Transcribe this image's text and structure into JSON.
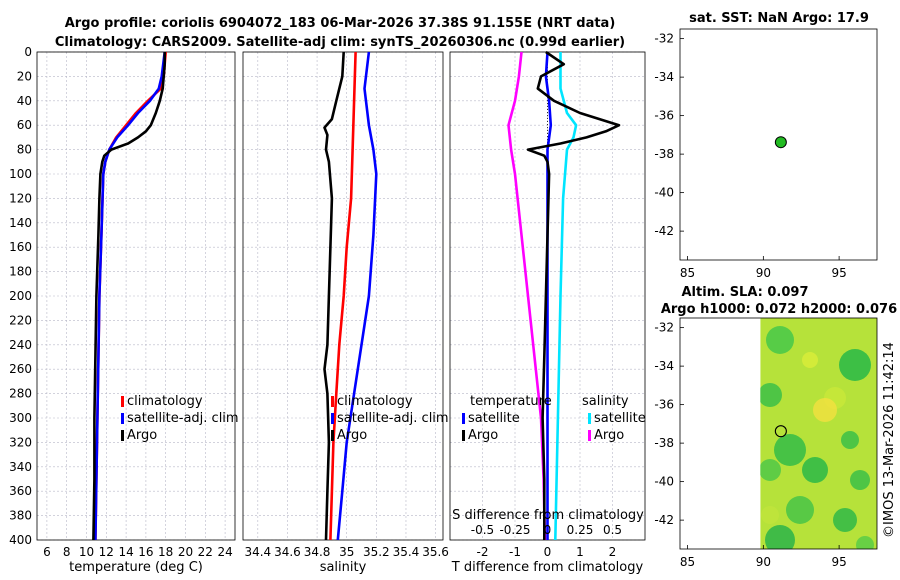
{
  "header": {
    "title_line1": "Argo profile: coriolis 6904072_183 06-Mar-2026 37.38S 91.155E (NRT data)",
    "title_line2": "Climatology: CARS2009. Satellite-adj clim: synTS_20260306.nc (0.99d earlier)"
  },
  "colors": {
    "climatology": "#ff0000",
    "satellite": "#0000ff",
    "argo": "#000000",
    "satellite_salinity": "#00e5ff",
    "argo_salinity_diff": "#ff00ff",
    "marker": "#22bb22"
  },
  "chart_data": [
    {
      "type": "line",
      "xlabel": "temperature (deg C)",
      "ylim": [
        0,
        400
      ],
      "xlim": [
        5,
        25
      ],
      "x_ticks": [
        6,
        8,
        10,
        12,
        14,
        16,
        18,
        20,
        22,
        24
      ],
      "y_ticks": [
        0,
        20,
        40,
        60,
        80,
        100,
        120,
        140,
        160,
        180,
        200,
        220,
        240,
        260,
        280,
        300,
        320,
        340,
        360,
        380,
        400
      ],
      "legend": [
        "climatology",
        "satellite-adj. clim",
        "Argo"
      ],
      "series": [
        {
          "name": "climatology",
          "depth": [
            0,
            20,
            30,
            40,
            50,
            60,
            70,
            80,
            90,
            100,
            150,
            200,
            250,
            300,
            350,
            400
          ],
          "values": [
            18,
            17.8,
            17.5,
            16.2,
            15,
            14,
            13,
            12.3,
            11.9,
            11.7,
            11.5,
            11.3,
            11.2,
            11.1,
            11.0,
            10.9
          ]
        },
        {
          "name": "satellite-adj. clim",
          "depth": [
            0,
            20,
            30,
            40,
            50,
            60,
            70,
            80,
            90,
            100,
            150,
            200,
            250,
            300,
            350,
            400
          ],
          "values": [
            17.9,
            17.6,
            17.3,
            16.4,
            15.2,
            14.2,
            13.1,
            12.3,
            11.9,
            11.7,
            11.5,
            11.3,
            11.2,
            11.1,
            11.0,
            10.9
          ]
        },
        {
          "name": "Argo",
          "depth": [
            0,
            10,
            20,
            30,
            40,
            50,
            60,
            65,
            70,
            75,
            80,
            85,
            90,
            100,
            120,
            150,
            200,
            250,
            300,
            350,
            400
          ],
          "values": [
            17.9,
            17.9,
            17.8,
            17.7,
            17.4,
            17.0,
            16.5,
            16.0,
            15.2,
            14.2,
            12.5,
            11.8,
            11.6,
            11.4,
            11.3,
            11.2,
            11.0,
            10.9,
            10.8,
            10.8,
            10.7
          ]
        }
      ]
    },
    {
      "type": "line",
      "xlabel": "salinity",
      "ylim": [
        0,
        400
      ],
      "xlim": [
        34.3,
        35.65
      ],
      "x_ticks": [
        34.4,
        34.6,
        34.8,
        35,
        35.2,
        35.4,
        35.6
      ],
      "x_tick_labels": [
        "34.4",
        "34.6",
        "34.8",
        "35",
        "35.2",
        "35.4",
        "35.6"
      ],
      "legend": [
        "climatology",
        "satellite-adj. clim",
        "Argo"
      ],
      "series": [
        {
          "name": "climatology",
          "depth": [
            0,
            40,
            80,
            120,
            160,
            200,
            240,
            280,
            320,
            360,
            400
          ],
          "values": [
            35.06,
            35.05,
            35.04,
            35.03,
            35.0,
            34.98,
            34.95,
            34.93,
            34.91,
            34.9,
            34.89
          ]
        },
        {
          "name": "satellite-adj. clim",
          "depth": [
            0,
            30,
            60,
            80,
            100,
            150,
            200,
            240,
            280,
            320,
            360,
            400
          ],
          "values": [
            35.15,
            35.12,
            35.15,
            35.18,
            35.2,
            35.18,
            35.15,
            35.1,
            35.05,
            35.0,
            34.97,
            34.94
          ]
        },
        {
          "name": "Argo",
          "depth": [
            0,
            20,
            40,
            55,
            62,
            68,
            80,
            90,
            120,
            160,
            200,
            240,
            260,
            280,
            320,
            360,
            400
          ],
          "values": [
            34.98,
            34.97,
            34.93,
            34.9,
            34.85,
            34.87,
            34.86,
            34.88,
            34.9,
            34.89,
            34.88,
            34.87,
            34.85,
            34.87,
            34.88,
            34.87,
            34.86
          ]
        }
      ]
    },
    {
      "type": "line",
      "xlabel": "T difference from climatology",
      "top_label": "S difference from climatology",
      "ylim": [
        0,
        400
      ],
      "xlim": [
        -3,
        3
      ],
      "x_ticks": [
        -2,
        -1,
        0,
        1,
        2
      ],
      "x_tick_labels": [
        "-2",
        "-1",
        "0",
        "1",
        "2"
      ],
      "top_ticks": [
        -0.5,
        -0.25,
        0,
        0.25,
        0.5
      ],
      "top_tick_labels": [
        "-0.5",
        "-0.25",
        "0",
        "0.25",
        "0.5"
      ],
      "legend_temperature": [
        "temperature",
        "satellite",
        "Argo"
      ],
      "legend_salinity": [
        "salinity",
        "satellite",
        "Argo"
      ],
      "series": [
        {
          "name": "temperature satellite",
          "depth": [
            0,
            20,
            40,
            60,
            80,
            100,
            200,
            300,
            400
          ],
          "values": [
            0.0,
            -0.05,
            0.05,
            0.1,
            0.0,
            0.0,
            0.0,
            0.0,
            0.0
          ]
        },
        {
          "name": "temperature Argo",
          "depth": [
            0,
            10,
            20,
            30,
            40,
            50,
            55,
            60,
            65,
            70,
            75,
            80,
            85,
            90,
            100,
            150,
            200,
            250,
            300,
            350,
            400
          ],
          "values": [
            -0.05,
            0.5,
            -0.2,
            -0.3,
            0.2,
            1.0,
            1.6,
            2.2,
            1.8,
            1.2,
            0.4,
            -0.6,
            -0.1,
            0.0,
            0.05,
            0.0,
            -0.05,
            -0.1,
            -0.15,
            -0.1,
            -0.1
          ]
        },
        {
          "name": "salinity satellite",
          "depth": [
            0,
            30,
            50,
            60,
            70,
            80,
            120,
            200,
            300,
            400
          ],
          "values": [
            0.1,
            0.1,
            0.15,
            0.22,
            0.2,
            0.15,
            0.12,
            0.1,
            0.08,
            0.06
          ]
        },
        {
          "name": "salinity Argo",
          "depth": [
            0,
            20,
            40,
            60,
            80,
            100,
            150,
            200,
            250,
            300,
            350,
            400
          ],
          "values": [
            -0.2,
            -0.22,
            -0.25,
            -0.3,
            -0.28,
            -0.25,
            -0.2,
            -0.15,
            -0.1,
            -0.05,
            -0.03,
            -0.02
          ]
        }
      ]
    },
    {
      "type": "scatter",
      "title": "sat. SST: NaN Argo: 17.9",
      "xlim": [
        84.5,
        97.5
      ],
      "ylim": [
        -43.5,
        -31.5
      ],
      "x_ticks": [
        85,
        90,
        95
      ],
      "y_ticks": [
        -42,
        -40,
        -38,
        -36,
        -34,
        -32
      ],
      "points": [
        {
          "lon": 91.155,
          "lat": -37.38
        }
      ]
    },
    {
      "type": "heatmap",
      "title_line1": "Altim. SLA: 0.097",
      "title_line2": "Argo h1000: 0.072 h2000: 0.076",
      "xlim": [
        84.5,
        97.5
      ],
      "ylim": [
        -43.5,
        -31.5
      ],
      "x_ticks": [
        85,
        90,
        95
      ],
      "y_ticks": [
        -42,
        -40,
        -38,
        -36,
        -34,
        -32
      ],
      "data_lon_range": [
        89.8,
        97.5
      ],
      "points": [
        {
          "lon": 91.155,
          "lat": -37.38
        }
      ]
    }
  ],
  "footer": {
    "stamp": "©IMOS 13-Mar-2026 11:42:14"
  }
}
